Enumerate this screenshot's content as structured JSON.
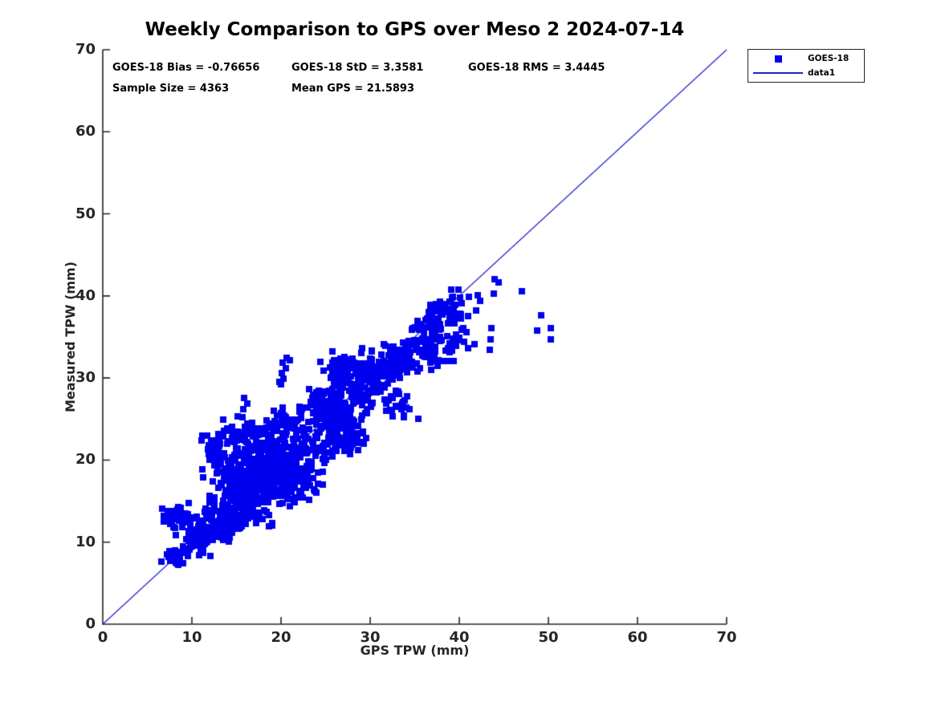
{
  "title": "Weekly Comparison to GPS over Meso 2 2024-07-14",
  "stats": {
    "bias_text": "GOES-18 Bias = -0.76656",
    "std_text": "GOES-18 StD = 3.3581",
    "rms_text": "GOES-18 RMS = 3.4445",
    "sample_text": "Sample Size = 4363",
    "mean_gps_text": "Mean GPS = 21.5893"
  },
  "legend": {
    "entries": [
      {
        "label": "GOES-18",
        "marker": "square"
      },
      {
        "label": "data1",
        "marker": "line"
      }
    ]
  },
  "chart_data": {
    "type": "scatter",
    "title": "Weekly Comparison to GPS over Meso 2 2024-07-14",
    "xlabel": "GPS TPW (mm)",
    "ylabel": "Measured TPW (mm)",
    "xlim": [
      0,
      70
    ],
    "ylim": [
      0,
      70
    ],
    "xticks": [
      0,
      10,
      20,
      30,
      40,
      50,
      60,
      70
    ],
    "yticks": [
      0,
      10,
      20,
      30,
      40,
      50,
      60,
      70
    ],
    "grid": false,
    "legend_position": "outside-top-right",
    "series_name": "GOES-18",
    "stats": {
      "bias": -0.76656,
      "std": 3.3581,
      "rms": 3.4445,
      "sample_size": 4363,
      "mean_gps": 21.5893
    },
    "identity_line": {
      "label": "data1",
      "x": [
        0,
        70
      ],
      "y": [
        0,
        70
      ]
    },
    "marker_color": "#0000ee",
    "line_color": "#2222cc",
    "axis_color": "#262626",
    "marker_px": 8,
    "seed": 20240714,
    "cluster_format": [
      "center_x",
      "center_y",
      "sd_x",
      "sd_y",
      "n_points"
    ],
    "clusters": [
      [
        8.3,
        8.3,
        0.8,
        0.5,
        30
      ],
      [
        10.4,
        9.4,
        0.8,
        0.6,
        26
      ],
      [
        11.2,
        10.3,
        0.7,
        0.6,
        22
      ],
      [
        8.5,
        12.8,
        1.0,
        0.9,
        40
      ],
      [
        13.0,
        12.5,
        1.3,
        1.1,
        115
      ],
      [
        15.5,
        15.0,
        1.6,
        1.4,
        135
      ],
      [
        18.0,
        17.3,
        1.6,
        1.4,
        125
      ],
      [
        20.5,
        19.5,
        1.6,
        1.4,
        110
      ],
      [
        14.5,
        18.5,
        1.2,
        1.0,
        60
      ],
      [
        12.6,
        21.3,
        0.9,
        0.9,
        42
      ],
      [
        21.8,
        17.2,
        1.3,
        1.1,
        55
      ],
      [
        23.0,
        21.5,
        1.4,
        1.2,
        65
      ],
      [
        17.3,
        20.6,
        1.3,
        1.1,
        65
      ],
      [
        20.3,
        24.2,
        1.2,
        1.0,
        48
      ],
      [
        27.3,
        22.4,
        1.2,
        1.0,
        42
      ],
      [
        16.6,
        23.3,
        1.4,
        1.0,
        48
      ],
      [
        24.3,
        27.2,
        1.1,
        1.1,
        48
      ],
      [
        26.3,
        25.6,
        1.5,
        1.4,
        85
      ],
      [
        28.8,
        28.6,
        1.6,
        1.5,
        90
      ],
      [
        26.6,
        31.0,
        1.2,
        1.0,
        48
      ],
      [
        30.8,
        30.8,
        1.4,
        1.3,
        65
      ],
      [
        33.2,
        26.8,
        1.0,
        1.0,
        26
      ],
      [
        33.3,
        32.3,
        1.4,
        1.3,
        60
      ],
      [
        36.3,
        33.6,
        1.5,
        1.3,
        60
      ],
      [
        37.3,
        37.3,
        1.0,
        0.9,
        32
      ],
      [
        39.5,
        34.3,
        1.0,
        1.0,
        26
      ],
      [
        39.6,
        38.6,
        0.8,
        1.0,
        20
      ],
      [
        35.8,
        36.9,
        0.9,
        0.6,
        15
      ]
    ],
    "points": [
      [
        20.0,
        29.2
      ],
      [
        20.3,
        29.9
      ],
      [
        20.1,
        30.6
      ],
      [
        20.5,
        31.2
      ],
      [
        20.2,
        31.9
      ],
      [
        20.6,
        32.5
      ],
      [
        21.0,
        32.2
      ],
      [
        19.8,
        29.5
      ],
      [
        15.9,
        27.6
      ],
      [
        16.2,
        26.9
      ],
      [
        15.8,
        26.2
      ],
      [
        11.2,
        18.9
      ],
      [
        11.3,
        17.9
      ],
      [
        44.0,
        42.0
      ],
      [
        44.4,
        41.6
      ],
      [
        43.9,
        40.3
      ],
      [
        42.1,
        40.1
      ],
      [
        42.3,
        39.4
      ],
      [
        41.9,
        38.2
      ],
      [
        47.0,
        40.6
      ],
      [
        49.2,
        37.6
      ],
      [
        48.7,
        35.8
      ],
      [
        50.3,
        36.1
      ],
      [
        50.3,
        34.7
      ],
      [
        43.6,
        36.1
      ],
      [
        43.5,
        34.7
      ],
      [
        43.4,
        33.4
      ],
      [
        39.3,
        39.9
      ],
      [
        38.9,
        39.3
      ],
      [
        38.4,
        39.0
      ],
      [
        40.1,
        37.3
      ],
      [
        36.6,
        37.5
      ]
    ]
  }
}
